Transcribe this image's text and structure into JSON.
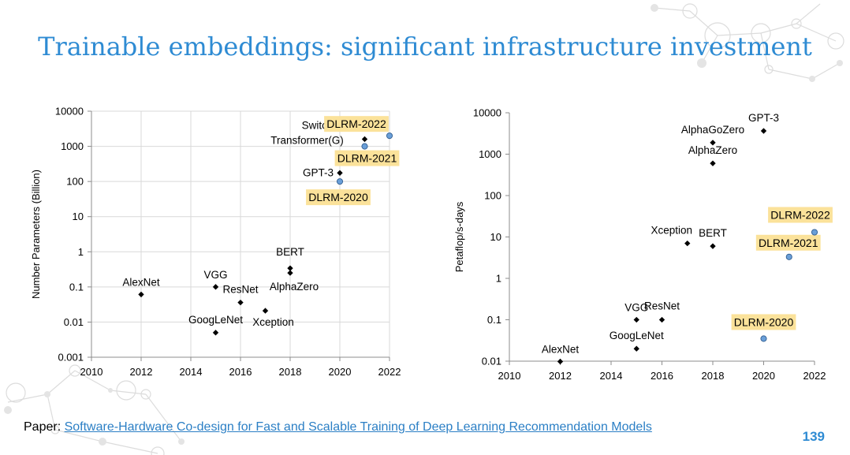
{
  "slide": {
    "title": "Trainable embeddings: significant infrastructure investment",
    "paper_prefix": "Paper: ",
    "paper_link": "Software-Hardware Co-design for Fast and Scalable Training of Deep Learning Recommendation Models",
    "page_number": "139",
    "highlight_color": "#fbe29a",
    "dlrm_point_color": "#6a9fd8",
    "title_color": "#2e8bd3"
  },
  "chart_data": [
    {
      "type": "scatter",
      "name": "parameters",
      "title": "",
      "xlabel": "",
      "ylabel": "Number Parameters (Billion)",
      "xlim": [
        2010,
        2022
      ],
      "ylim": [
        0.001,
        10000
      ],
      "yscale": "log",
      "xticks": [
        "2010",
        "2012",
        "2014",
        "2016",
        "2018",
        "2020",
        "2022"
      ],
      "yticks": [
        "0.001",
        "0.01",
        "0.1",
        "1",
        "10",
        "100",
        "1000",
        "10000"
      ],
      "grid": true,
      "points": [
        {
          "label": "AlexNet",
          "x": 2012,
          "y": 0.061,
          "dlrm": false
        },
        {
          "label": "VGG",
          "x": 2015,
          "y": 0.1,
          "dlrm": false
        },
        {
          "label": "GoogLeNet",
          "x": 2015,
          "y": 0.005,
          "dlrm": false
        },
        {
          "label": "ResNet",
          "x": 2016,
          "y": 0.036,
          "dlrm": false
        },
        {
          "label": "Xception",
          "x": 2017,
          "y": 0.021,
          "dlrm": false
        },
        {
          "label": "BERT",
          "x": 2018,
          "y": 0.34,
          "dlrm": false
        },
        {
          "label": "AlphaZero",
          "x": 2018,
          "y": 0.25,
          "dlrm": false
        },
        {
          "label": "GPT-3",
          "x": 2020,
          "y": 175,
          "dlrm": false
        },
        {
          "label": "Switch Transformer(G)",
          "x": 2021,
          "y": 1600,
          "dlrm": false
        },
        {
          "label": "DLRM-2020",
          "x": 2020,
          "y": 100,
          "dlrm": true
        },
        {
          "label": "DLRM-2021",
          "x": 2021,
          "y": 1000,
          "dlrm": true
        },
        {
          "label": "DLRM-2022",
          "x": 2022,
          "y": 2000,
          "dlrm": true
        }
      ]
    },
    {
      "type": "scatter",
      "name": "compute",
      "title": "",
      "xlabel": "",
      "ylabel": "Petaflop/s-days",
      "xlim": [
        2010,
        2022
      ],
      "ylim": [
        0.01,
        10000
      ],
      "yscale": "log",
      "xticks": [
        "2010",
        "2012",
        "2014",
        "2016",
        "2018",
        "2020",
        "2022"
      ],
      "yticks": [
        "0.01",
        "0.1",
        "1",
        "10",
        "100",
        "1000",
        "10000"
      ],
      "grid": false,
      "points": [
        {
          "label": "AlexNet",
          "x": 2012,
          "y": 0.0098,
          "dlrm": false
        },
        {
          "label": "VGG",
          "x": 2015,
          "y": 0.1,
          "dlrm": false
        },
        {
          "label": "GoogLeNet",
          "x": 2015,
          "y": 0.02,
          "dlrm": false
        },
        {
          "label": "ResNet",
          "x": 2016,
          "y": 0.1,
          "dlrm": false
        },
        {
          "label": "Xception",
          "x": 2017,
          "y": 7,
          "dlrm": false
        },
        {
          "label": "BERT",
          "x": 2018,
          "y": 6,
          "dlrm": false
        },
        {
          "label": "AlphaGoZero",
          "x": 2018,
          "y": 1900,
          "dlrm": false
        },
        {
          "label": "AlphaZero",
          "x": 2018,
          "y": 600,
          "dlrm": false
        },
        {
          "label": "GPT-3",
          "x": 2020,
          "y": 3640,
          "dlrm": false
        },
        {
          "label": "DLRM-2020",
          "x": 2020,
          "y": 0.035,
          "dlrm": true
        },
        {
          "label": "DLRM-2021",
          "x": 2021,
          "y": 3.3,
          "dlrm": true
        },
        {
          "label": "DLRM-2022",
          "x": 2022,
          "y": 13,
          "dlrm": true
        }
      ]
    }
  ]
}
